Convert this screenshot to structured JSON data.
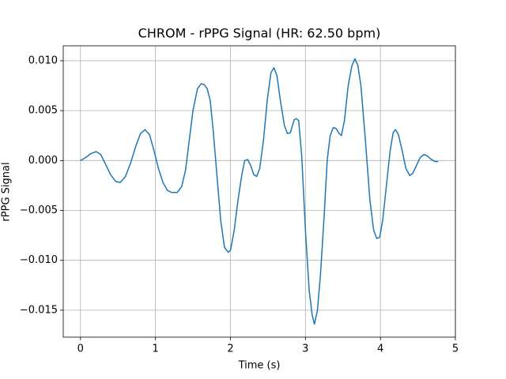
{
  "chart_data": {
    "type": "line",
    "title": "CHROM - rPPG Signal (HR: 62.50 bpm)",
    "x_label": "Time (s)",
    "y_label": "rPPG Signal",
    "x": [
      0,
      0.07,
      0.14,
      0.21,
      0.27,
      0.33,
      0.4,
      0.47,
      0.53,
      0.6,
      0.67,
      0.74,
      0.8,
      0.86,
      0.92,
      0.98,
      1.04,
      1.1,
      1.16,
      1.22,
      1.29,
      1.35,
      1.4,
      1.45,
      1.5,
      1.56,
      1.61,
      1.65,
      1.69,
      1.73,
      1.77,
      1.82,
      1.87,
      1.92,
      1.97,
      2.0,
      2.05,
      2.1,
      2.15,
      2.19,
      2.23,
      2.27,
      2.31,
      2.35,
      2.39,
      2.44,
      2.49,
      2.54,
      2.58,
      2.62,
      2.67,
      2.72,
      2.76,
      2.8,
      2.85,
      2.88,
      2.91,
      2.95,
      3.0,
      3.05,
      3.09,
      3.12,
      3.16,
      3.2,
      3.25,
      3.29,
      3.33,
      3.37,
      3.41,
      3.45,
      3.48,
      3.52,
      3.57,
      3.62,
      3.66,
      3.7,
      3.74,
      3.8,
      3.86,
      3.91,
      3.95,
      3.99,
      4.03,
      4.08,
      4.13,
      4.17,
      4.2,
      4.24,
      4.29,
      4.34,
      4.39,
      4.43,
      4.48,
      4.53,
      4.58,
      4.62,
      4.68,
      4.73,
      4.77
    ],
    "series": [
      {
        "name": "CHROM",
        "color": "#1f77b4",
        "values": [
          0.0,
          0.0003,
          0.0007,
          0.0009,
          0.0006,
          -0.0003,
          -0.0014,
          -0.0021,
          -0.0022,
          -0.0016,
          -0.0002,
          0.0015,
          0.0027,
          0.0031,
          0.0026,
          0.001,
          -0.0008,
          -0.0022,
          -0.003,
          -0.0032,
          -0.0032,
          -0.0026,
          -0.001,
          0.002,
          0.005,
          0.0072,
          0.0077,
          0.0076,
          0.0072,
          0.006,
          0.003,
          -0.0015,
          -0.006,
          -0.0087,
          -0.0092,
          -0.009,
          -0.007,
          -0.004,
          -0.0015,
          0.0,
          0.0001,
          -0.0005,
          -0.0014,
          -0.0016,
          -0.0008,
          0.002,
          0.006,
          0.0088,
          0.0093,
          0.0085,
          0.0058,
          0.0035,
          0.0027,
          0.0028,
          0.0041,
          0.0042,
          0.004,
          0.0005,
          -0.007,
          -0.013,
          -0.0155,
          -0.0164,
          -0.015,
          -0.0115,
          -0.0055,
          0.0,
          0.0025,
          0.0033,
          0.0032,
          0.0027,
          0.0025,
          0.004,
          0.0075,
          0.0095,
          0.0102,
          0.0095,
          0.0075,
          0.002,
          -0.004,
          -0.007,
          -0.0078,
          -0.0077,
          -0.006,
          -0.0025,
          0.001,
          0.0028,
          0.0031,
          0.0026,
          0.001,
          -0.0008,
          -0.0015,
          -0.0013,
          -0.0005,
          0.0003,
          0.0006,
          0.0005,
          0.0001,
          -0.0001,
          -0.0001
        ]
      }
    ],
    "xlim": [
      -0.23,
      5.0
    ],
    "ylim": [
      -0.0177,
      0.0115
    ],
    "xticks": [
      0,
      1,
      2,
      3,
      4,
      5
    ],
    "yticks": [
      {
        "value": -0.015,
        "label": "−0.015"
      },
      {
        "value": -0.01,
        "label": "−0.010"
      },
      {
        "value": -0.005,
        "label": "−0.005"
      },
      {
        "value": 0,
        "label": "0.000"
      },
      {
        "value": 0.005,
        "label": "0.005"
      },
      {
        "value": 0.01,
        "label": "0.010"
      }
    ],
    "grid": true
  }
}
